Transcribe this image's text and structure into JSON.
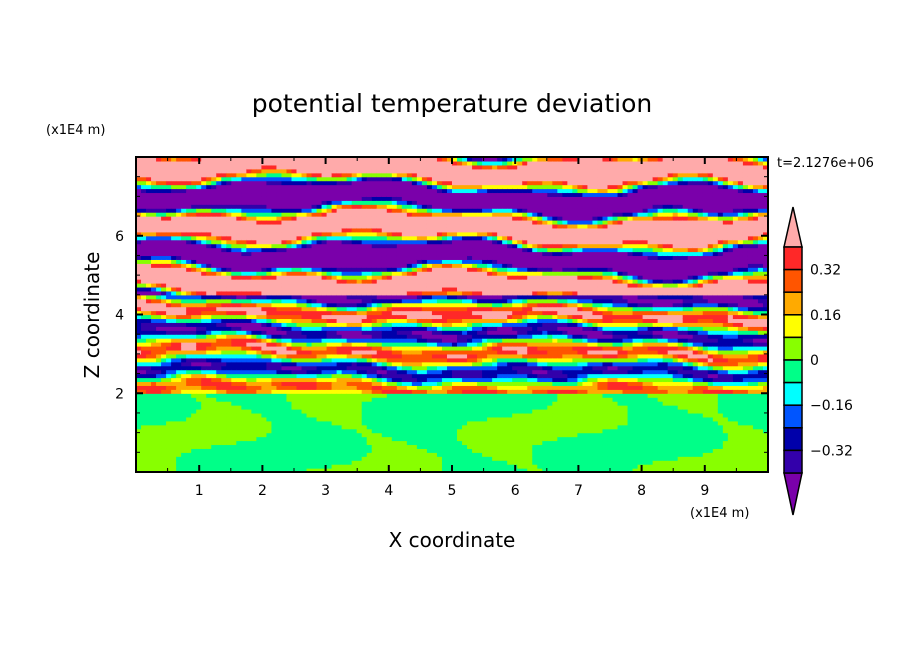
{
  "chart_data": {
    "type": "heatmap",
    "title": "potential temperature deviation",
    "xlabel": "X coordinate",
    "ylabel": "Z coordinate",
    "x_unit": "(x1E4 m)",
    "y_unit": "(x1E4 m)",
    "time_label": "t=2.1276e+06",
    "xlim": [
      0,
      10
    ],
    "ylim": [
      0,
      8
    ],
    "xticks": [
      "1",
      "2",
      "3",
      "4",
      "5",
      "6",
      "7",
      "8",
      "9"
    ],
    "xtick_values": [
      1,
      2,
      3,
      4,
      5,
      6,
      7,
      8,
      9
    ],
    "yticks": [
      "2",
      "4",
      "6"
    ],
    "ytick_values": [
      2,
      4,
      6
    ],
    "levels": [
      -0.4,
      -0.32,
      -0.24,
      -0.16,
      -0.08,
      0,
      0.08,
      0.16,
      0.24,
      0.32,
      0.4
    ],
    "colors": {
      "below": "#7a00aa",
      "bands": [
        "#3300aa",
        "#0000aa",
        "#0055ff",
        "#00ffff",
        "#00ff88",
        "#88ff00",
        "#ffff00",
        "#ffaa00",
        "#ff5500",
        "#ff2828"
      ],
      "above": "#ffaaaa"
    },
    "colorbar_labels": [
      "0.32",
      "0.16",
      "0",
      "-0.16",
      "-0.32"
    ],
    "colorbar_label_values": [
      0.32,
      0.16,
      0,
      -0.16,
      -0.32
    ]
  }
}
